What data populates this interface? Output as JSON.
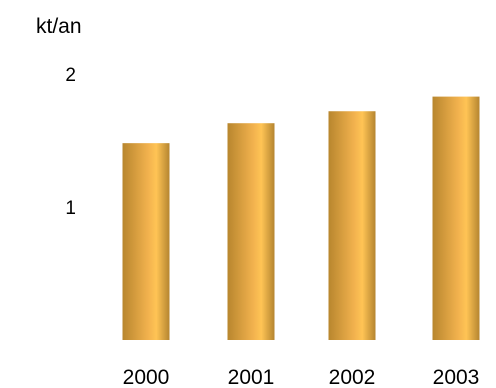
{
  "chart_data": {
    "type": "bar",
    "ylabel": "kt/an",
    "categories": [
      "2000",
      "2001",
      "2002",
      "2003"
    ],
    "values": [
      1.48,
      1.63,
      1.72,
      1.83
    ],
    "ylim": [
      0,
      2
    ],
    "yticks": [
      {
        "value": 1,
        "label": "1"
      },
      {
        "value": 2,
        "label": "2"
      }
    ],
    "grid": false,
    "legend": "none",
    "colors": {
      "bar_dark": "#b8862e",
      "bar_light": "#ffc455",
      "background": "#ffffff"
    }
  }
}
